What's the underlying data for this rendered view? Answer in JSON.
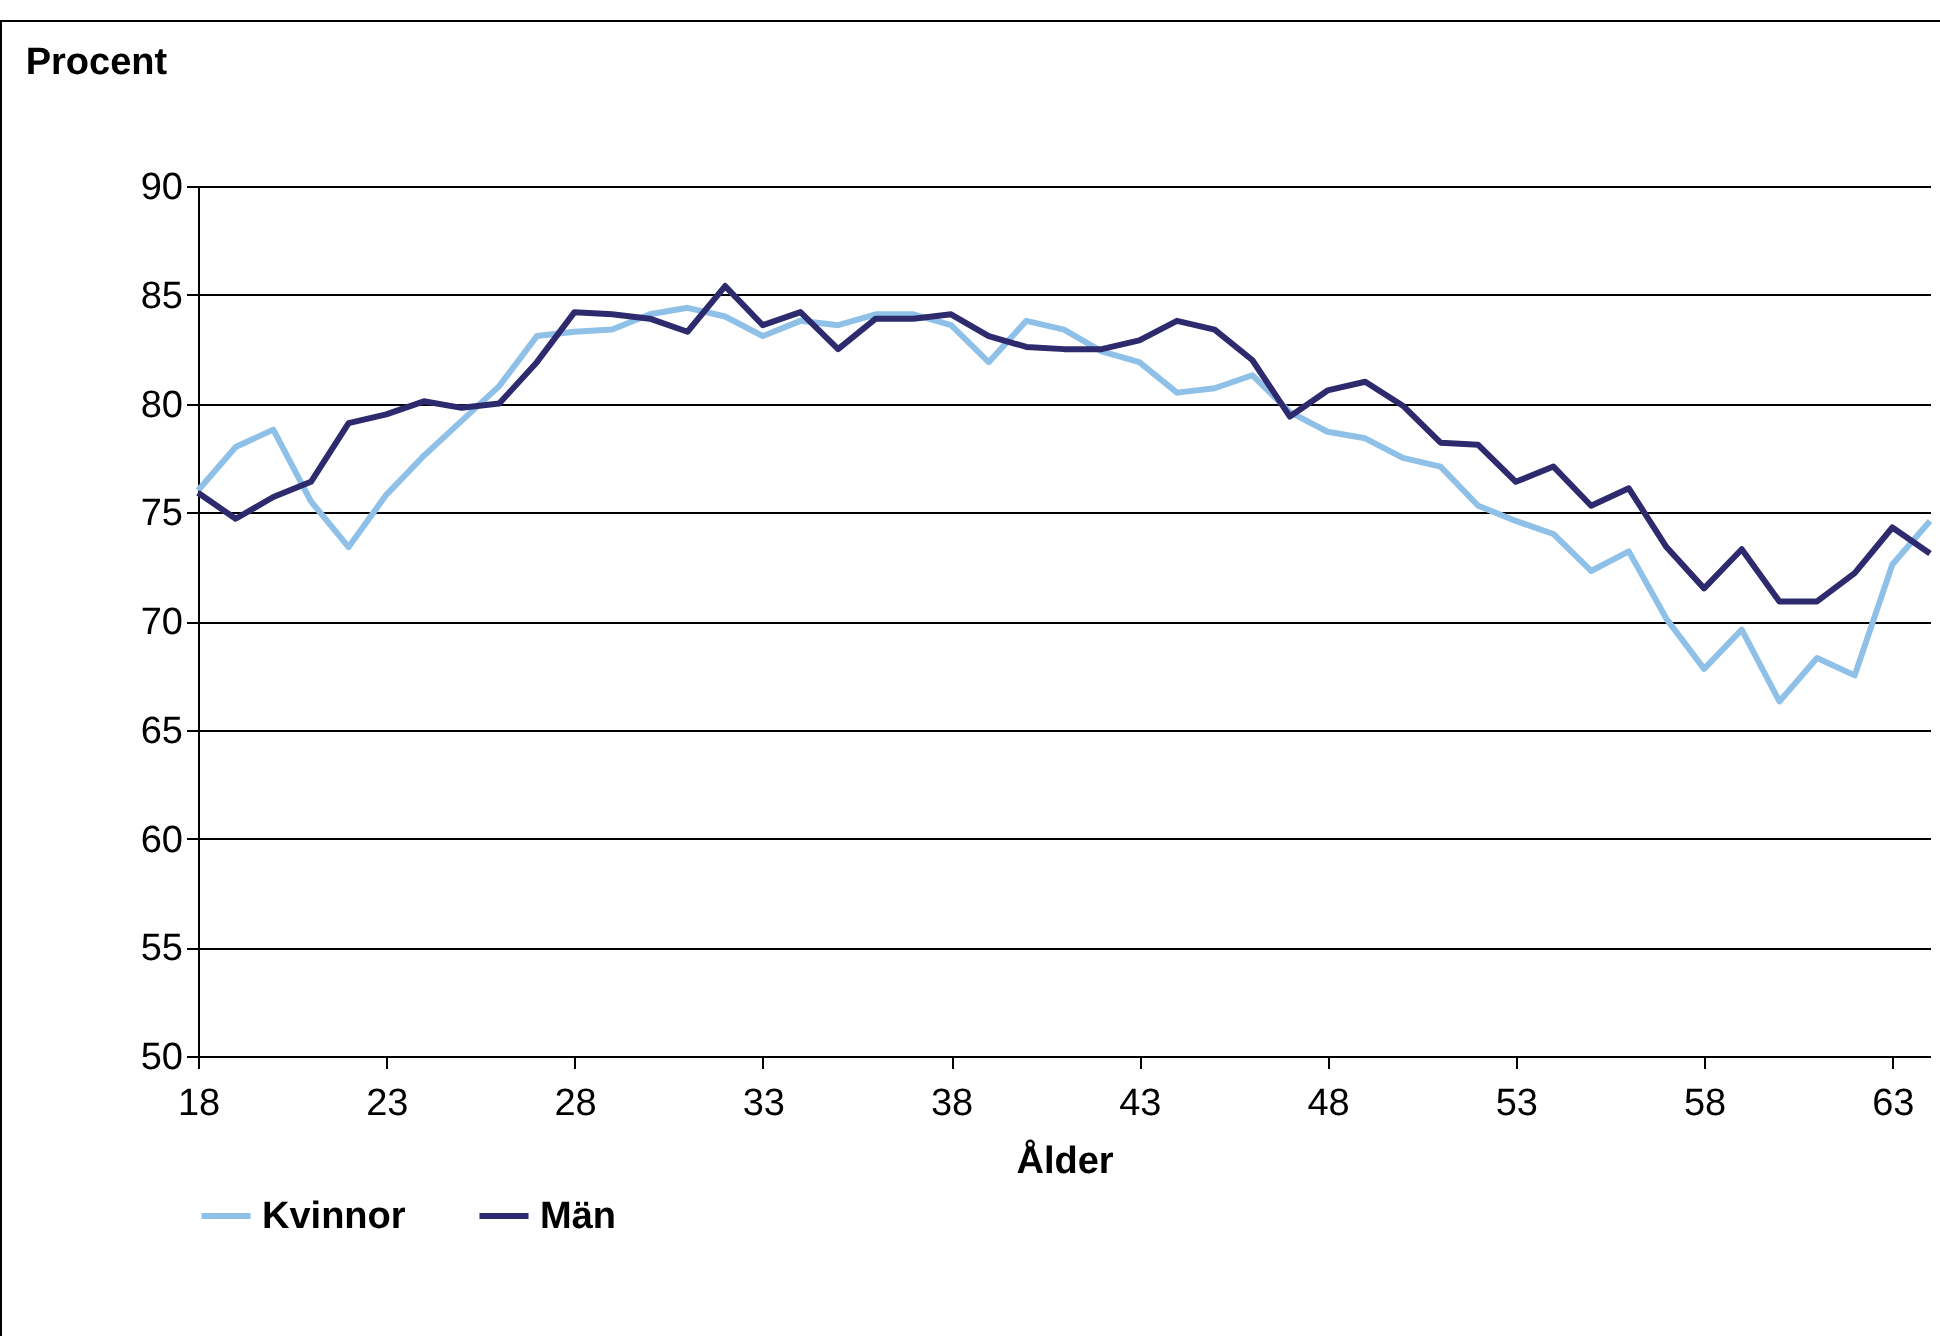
{
  "chart_data": {
    "type": "line",
    "ylabel": "Procent",
    "xlabel": "Ålder",
    "x": [
      18,
      19,
      20,
      21,
      22,
      23,
      24,
      25,
      26,
      27,
      28,
      29,
      30,
      31,
      32,
      33,
      34,
      35,
      36,
      37,
      38,
      39,
      40,
      41,
      42,
      43,
      44,
      45,
      46,
      47,
      48,
      49,
      50,
      51,
      52,
      53,
      54,
      55,
      56,
      57,
      58,
      59,
      60,
      61,
      62,
      63,
      64
    ],
    "series": [
      {
        "name": "Kvinnor",
        "color": "#8fc1e8",
        "values": [
          76,
          78,
          78.8,
          75.5,
          73.4,
          75.8,
          77.6,
          79.2,
          80.8,
          83.1,
          83.3,
          83.4,
          84.1,
          84.4,
          84,
          83.1,
          83.8,
          83.6,
          84.1,
          84.1,
          83.6,
          81.9,
          83.8,
          83.4,
          82.4,
          81.9,
          80.5,
          80.7,
          81.3,
          79.6,
          78.7,
          78.4,
          77.5,
          77.1,
          75.3,
          74.6,
          74,
          72.3,
          73.2,
          70.1,
          67.8,
          69.6,
          66.3,
          68.3,
          67.5,
          72.6,
          74.6
        ]
      },
      {
        "name": "Män",
        "color": "#2e2a6e",
        "values": [
          75.9,
          74.7,
          75.7,
          76.4,
          79.1,
          79.5,
          80.1,
          79.8,
          80,
          81.9,
          84.2,
          84.1,
          83.9,
          83.3,
          85.4,
          83.6,
          84.2,
          82.5,
          83.9,
          83.9,
          84.1,
          83.1,
          82.6,
          82.5,
          82.5,
          82.9,
          83.8,
          83.4,
          82,
          79.4,
          80.6,
          81,
          79.9,
          78.2,
          78.1,
          76.4,
          77.1,
          75.3,
          76.1,
          73.4,
          71.5,
          73.3,
          70.9,
          70.9,
          72.2,
          74.3,
          73.1
        ]
      }
    ],
    "xlim": [
      18,
      64
    ],
    "xticks": [
      18,
      23,
      28,
      33,
      38,
      43,
      48,
      53,
      58,
      63
    ],
    "ylim": [
      50,
      90
    ],
    "yticks": [
      50,
      55,
      60,
      65,
      70,
      75,
      80,
      85,
      90
    ],
    "grid": "y",
    "legend": "bottom",
    "marker": "none",
    "line_style": "solid"
  }
}
